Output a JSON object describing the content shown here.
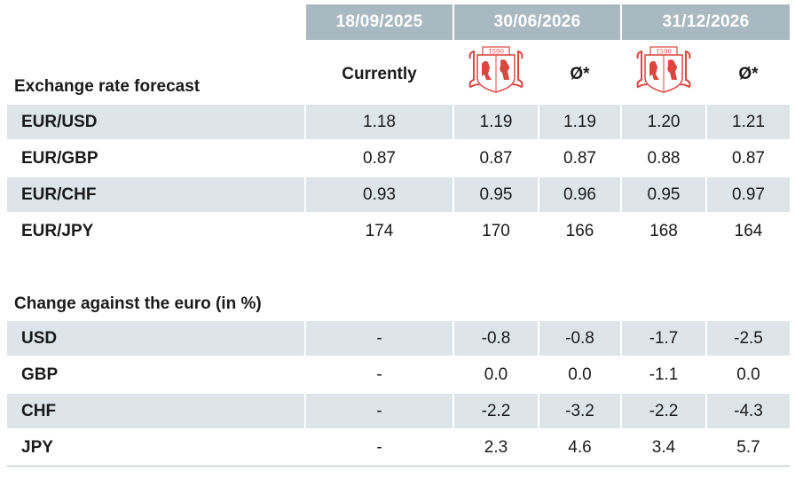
{
  "header": {
    "date_current": "18/09/2025",
    "date_mid": "30/06/2026",
    "date_end": "31/12/2026",
    "sub_currently": "Currently",
    "sub_avg": "Ø*",
    "logo_year": "1590"
  },
  "forecast": {
    "title": "Exchange rate forecast",
    "rows": [
      {
        "label": "EUR/USD",
        "values": [
          "1.18",
          "1.19",
          "1.19",
          "1.20",
          "1.21"
        ]
      },
      {
        "label": "EUR/GBP",
        "values": [
          "0.87",
          "0.87",
          "0.87",
          "0.88",
          "0.87"
        ]
      },
      {
        "label": "EUR/CHF",
        "values": [
          "0.93",
          "0.95",
          "0.96",
          "0.95",
          "0.97"
        ]
      },
      {
        "label": "EUR/JPY",
        "values": [
          "174",
          "170",
          "166",
          "168",
          "164"
        ]
      }
    ]
  },
  "change": {
    "title": "Change against the euro (in %)",
    "rows": [
      {
        "label": "USD",
        "values": [
          "-",
          "-0.8",
          "-0.8",
          "-1.7",
          "-2.5"
        ]
      },
      {
        "label": "GBP",
        "values": [
          "-",
          "0.0",
          "0.0",
          "-1.1",
          "0.0"
        ]
      },
      {
        "label": "CHF",
        "values": [
          "-",
          "-2.2",
          "-3.2",
          "-2.2",
          "-4.3"
        ]
      },
      {
        "label": "JPY",
        "values": [
          "-",
          "2.3",
          "4.6",
          "3.4",
          "5.7"
        ]
      }
    ]
  },
  "colors": {
    "header_bg": "#a9b9c2",
    "row_shade": "#dee5e9",
    "logo_red": "#d9473f"
  }
}
